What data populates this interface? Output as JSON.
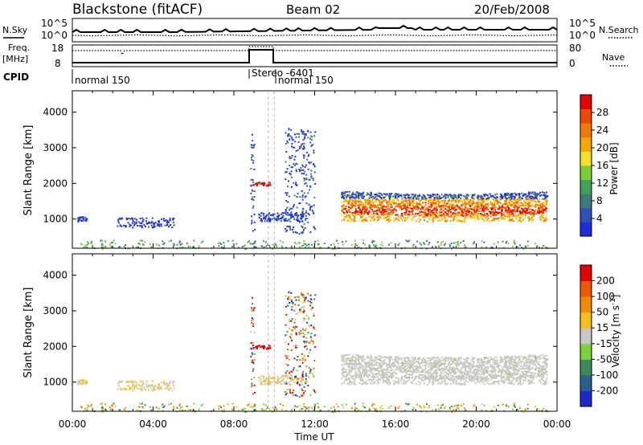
{
  "header": {
    "station": "Blackstone (fitACF)",
    "beam": "Beam 02",
    "date": "20/Feb/2008"
  },
  "summary": {
    "nsky_label": "N.Sky",
    "nsearch_label": "N.Search",
    "freq_label": "Freq.",
    "freq_unit": "[MHz]",
    "nave_label": "Nave",
    "cpid_label": "CPID",
    "noise_ticks": [
      "10^5",
      "10^0"
    ],
    "freq_ticks": [
      "18",
      "8"
    ],
    "nave_ticks": [
      "80",
      "0"
    ]
  },
  "cpid_segments": [
    {
      "start": 0.1,
      "label": "normal 150"
    },
    {
      "start": 8.7,
      "label": "Stereo -6401"
    },
    {
      "start": 9.7,
      "label": "normal 150"
    }
  ],
  "chart_data": [
    {
      "type": "heatmap",
      "name": "power",
      "xlabel": "Time UT",
      "ylabel": "Slant Range [km]",
      "colorbar_label": "Power [dB]",
      "xlim": [
        0,
        24
      ],
      "ylim": [
        180,
        4600
      ],
      "xticks": [
        "00:00",
        "04:00",
        "08:00",
        "12:00",
        "16:00",
        "20:00",
        "00:00"
      ],
      "yticks": [
        1000,
        2000,
        3000,
        4000
      ],
      "colorbar_ticks": [
        "28",
        "24",
        "20",
        "16",
        "12",
        "8",
        "4"
      ],
      "colorbar_colors": [
        "#1f2dd6",
        "#2f4fb5",
        "#3c7a7c",
        "#3fa256",
        "#7ccc3a",
        "#f0e12a",
        "#f2a800",
        "#ef7a00",
        "#ec4a00",
        "#e50000"
      ]
    },
    {
      "type": "heatmap",
      "name": "velocity",
      "xlabel": "Time UT",
      "ylabel": "Slant Range [km]",
      "colorbar_label": "Velocity [m s^-1]",
      "xlim": [
        0,
        24
      ],
      "ylim": [
        180,
        4600
      ],
      "xticks": [
        "00:00",
        "04:00",
        "08:00",
        "12:00",
        "16:00",
        "20:00",
        "00:00"
      ],
      "yticks": [
        1000,
        2000,
        3000,
        4000
      ],
      "colorbar_ticks": [
        "200",
        "100",
        "50",
        "15",
        "-15",
        "-50",
        "-100",
        "-200"
      ],
      "colorbar_colors": [
        "#1a28c8",
        "#2a6090",
        "#3a8a5a",
        "#7dd040",
        "#c8c8c0",
        "#f2c020",
        "#f08a00",
        "#ee5a00",
        "#e20000"
      ]
    }
  ]
}
